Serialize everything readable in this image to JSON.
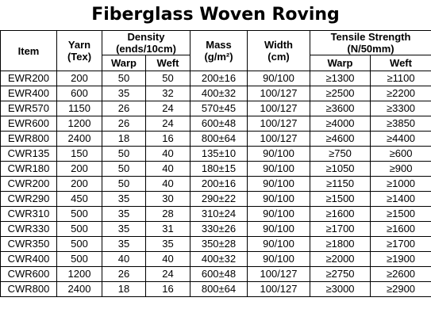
{
  "title": "Fiberglass Woven Roving",
  "headers": {
    "item": "Item",
    "yarn": "Yarn",
    "yarn_unit": "(Tex)",
    "density": "Density",
    "density_unit": "(ends/10cm)",
    "mass": "Mass",
    "mass_unit": "(g/m²)",
    "width": "Width",
    "width_unit": "(cm)",
    "tensile": "Tensile Strength",
    "tensile_unit": "(N/50mm)",
    "warp": "Warp",
    "weft": "Weft",
    "t_warp": "Warp",
    "t_weft": "Weft"
  },
  "rows": [
    [
      "EWR200",
      "200",
      "50",
      "50",
      "200±16",
      "90/100",
      "≥1300",
      "≥1100"
    ],
    [
      "EWR400",
      "600",
      "35",
      "32",
      "400±32",
      "100/127",
      "≥2500",
      "≥2200"
    ],
    [
      "EWR570",
      "1150",
      "26",
      "24",
      "570±45",
      "100/127",
      "≥3600",
      "≥3300"
    ],
    [
      "EWR600",
      "1200",
      "26",
      "24",
      "600±48",
      "100/127",
      "≥4000",
      "≥3850"
    ],
    [
      "EWR800",
      "2400",
      "18",
      "16",
      "800±64",
      "100/127",
      "≥4600",
      "≥4400"
    ],
    [
      "CWR135",
      "150",
      "50",
      "40",
      "135±10",
      "90/100",
      "≥750",
      "≥600"
    ],
    [
      "CWR180",
      "200",
      "50",
      "40",
      "180±15",
      "90/100",
      "≥1050",
      "≥900"
    ],
    [
      "CWR200",
      "200",
      "50",
      "40",
      "200±16",
      "90/100",
      "≥1150",
      "≥1000"
    ],
    [
      "CWR290",
      "450",
      "35",
      "30",
      "290±22",
      "90/100",
      "≥1500",
      "≥1400"
    ],
    [
      "CWR310",
      "500",
      "35",
      "28",
      "310±24",
      "90/100",
      "≥1600",
      "≥1500"
    ],
    [
      "CWR330",
      "500",
      "35",
      "31",
      "330±26",
      "90/100",
      "≥1700",
      "≥1600"
    ],
    [
      "CWR350",
      "500",
      "35",
      "35",
      "350±28",
      "90/100",
      "≥1800",
      "≥1700"
    ],
    [
      "CWR400",
      "500",
      "40",
      "40",
      "400±32",
      "90/100",
      "≥2000",
      "≥1900"
    ],
    [
      "CWR600",
      "1200",
      "26",
      "24",
      "600±48",
      "100/127",
      "≥2750",
      "≥2600"
    ],
    [
      "CWR800",
      "2400",
      "18",
      "16",
      "800±64",
      "100/127",
      "≥3000",
      "≥2900"
    ]
  ]
}
